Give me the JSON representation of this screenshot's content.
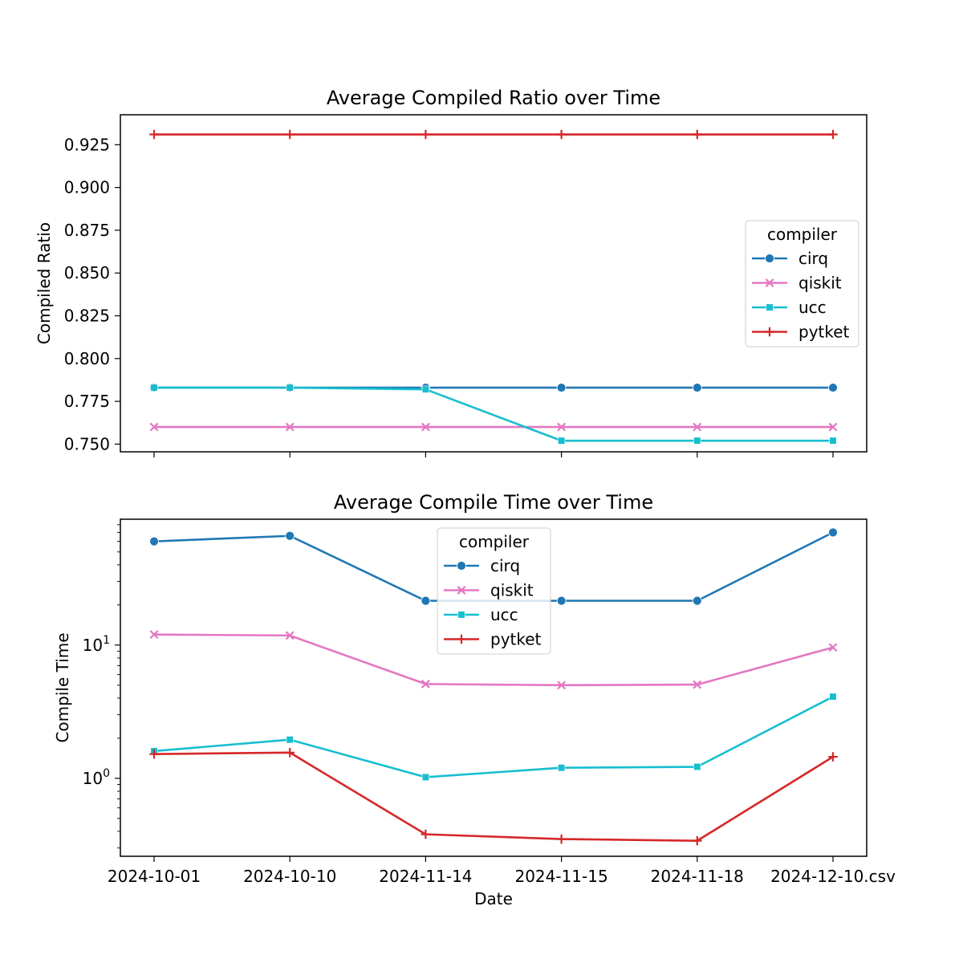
{
  "chart_data": [
    {
      "type": "line",
      "title": "Average Compiled Ratio over Time",
      "xlabel": "",
      "ylabel": "Compiled Ratio",
      "categories": [
        "2024-10-01",
        "2024-10-10",
        "2024-11-14",
        "2024-11-15",
        "2024-11-18",
        "2024-12-10.csv"
      ],
      "show_xticklabels": false,
      "ylim": [
        0.7455,
        0.9425
      ],
      "yscale": "linear",
      "yticks": [
        0.75,
        0.775,
        0.8,
        0.825,
        0.85,
        0.875,
        0.9,
        0.925
      ],
      "ytick_labels": [
        "0.750",
        "0.775",
        "0.800",
        "0.825",
        "0.850",
        "0.875",
        "0.900",
        "0.925"
      ],
      "grid": false,
      "legend": {
        "title": "compiler",
        "placement": "center-right"
      },
      "series": [
        {
          "name": "cirq",
          "color": "#1f77b4",
          "marker": "circle",
          "values": [
            0.783,
            0.783,
            0.783,
            0.783,
            0.783,
            0.783
          ]
        },
        {
          "name": "qiskit",
          "color": "#e377c2",
          "marker": "x",
          "values": [
            0.76,
            0.76,
            0.76,
            0.76,
            0.76,
            0.76
          ]
        },
        {
          "name": "ucc",
          "color": "#17becf",
          "marker": "square",
          "values": [
            0.783,
            0.783,
            0.782,
            0.752,
            0.752,
            0.752
          ]
        },
        {
          "name": "pytket",
          "color": "#d62728",
          "marker": "plus",
          "values": [
            0.931,
            0.931,
            0.931,
            0.931,
            0.931,
            0.931
          ]
        }
      ]
    },
    {
      "type": "line",
      "title": "Average Compile Time over Time",
      "xlabel": "Date",
      "ylabel": "Compile Time",
      "categories": [
        "2024-10-01",
        "2024-10-10",
        "2024-11-14",
        "2024-11-15",
        "2024-11-18",
        "2024-12-10.csv"
      ],
      "show_xticklabels": true,
      "ylim": [
        0.26,
        88
      ],
      "yscale": "log",
      "yticks": [
        1,
        10
      ],
      "ytick_labels": [
        {
          "base": "10",
          "exp": "0"
        },
        {
          "base": "10",
          "exp": "1"
        }
      ],
      "grid": false,
      "legend": {
        "title": "compiler",
        "placement": "top-center"
      },
      "series": [
        {
          "name": "cirq",
          "color": "#1f77b4",
          "marker": "circle",
          "values": [
            60,
            66,
            21.5,
            21.5,
            21.5,
            70
          ]
        },
        {
          "name": "qiskit",
          "color": "#e377c2",
          "marker": "x",
          "values": [
            12,
            11.8,
            5.1,
            5.0,
            5.05,
            9.6
          ]
        },
        {
          "name": "ucc",
          "color": "#17becf",
          "marker": "square",
          "values": [
            1.6,
            1.95,
            1.02,
            1.2,
            1.22,
            4.1
          ]
        },
        {
          "name": "pytket",
          "color": "#d62728",
          "marker": "plus",
          "values": [
            1.52,
            1.56,
            0.38,
            0.35,
            0.34,
            1.45
          ]
        }
      ]
    }
  ]
}
